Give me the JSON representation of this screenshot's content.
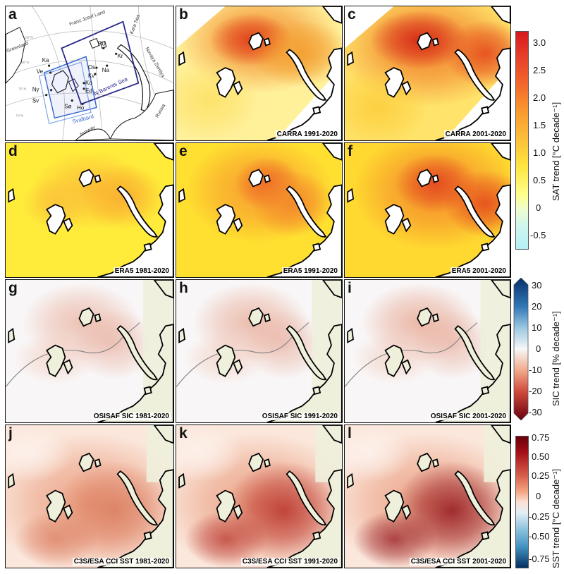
{
  "panels": [
    {
      "label": "a",
      "caption": ""
    },
    {
      "label": "b",
      "caption": "CARRA 1991-2020"
    },
    {
      "label": "c",
      "caption": "CARRA 2001-2020"
    },
    {
      "label": "d",
      "caption": "ERA5 1981-2020"
    },
    {
      "label": "e",
      "caption": "ERA5 1991-2020"
    },
    {
      "label": "f",
      "caption": "ERA5 2001-2020"
    },
    {
      "label": "g",
      "caption": "OSISAF SIC 1981-2020"
    },
    {
      "label": "h",
      "caption": "OSISAF SIC 1991-2020"
    },
    {
      "label": "i",
      "caption": "OSISAF SIC 2001-2020"
    },
    {
      "label": "j",
      "caption": "C3S/ESA CCI SST 1981-2020"
    },
    {
      "label": "k",
      "caption": "C3S/ESA CCI SST 1991-2020"
    },
    {
      "label": "l",
      "caption": "C3S/ESA CCI SST 2001-2020"
    }
  ],
  "overview_map": {
    "place_labels": [
      "Franz Josef Land",
      "Kara Sea",
      "Novaya Zemlya",
      "N Barents Sea",
      "Svalbard",
      "Greenland",
      "Norway",
      "Russia"
    ],
    "station_labels": [
      "Ka",
      "Ve",
      "Ny",
      "Sv",
      "Sø",
      "Ho",
      "Ed",
      "Ko",
      "Os",
      "Kv",
      "Na",
      "Kr",
      "Ru"
    ],
    "lat_labels": [
      "85°N",
      "80°N",
      "75°N",
      "70°N"
    ]
  },
  "colorbars": [
    {
      "label": "SAT trend [°C decade⁻¹]",
      "ticks": [
        "3.0",
        "2.5",
        "2.0",
        "1.5",
        "1.0",
        "0.5",
        "0",
        "-0.5"
      ],
      "min": -0.75,
      "max": 3.25
    },
    {
      "label": "SIC trend [% decade⁻¹]",
      "ticks": [
        "30",
        "20",
        "10",
        "0",
        "-10",
        "-20",
        "-30"
      ],
      "min": -30,
      "max": 30
    },
    {
      "label": "SST trend [°C decade⁻¹]",
      "ticks": [
        "0.75",
        "0.50",
        "0.25",
        "0",
        "-0.25",
        "-0.50",
        "-0.75"
      ],
      "min": -0.75,
      "max": 0.75
    }
  ],
  "colors": {
    "sat_high": "#d7191c",
    "sat_mid": "#fdae61",
    "sat_low": "#ffff8c",
    "sat_neg": "#b4f0f5",
    "sic_pos": "#08306b",
    "sic_neg": "#67000d",
    "sst_pos": "#67000d",
    "sst_neg": "#053061",
    "land": "#eef0dc",
    "coast": "#000000"
  }
}
